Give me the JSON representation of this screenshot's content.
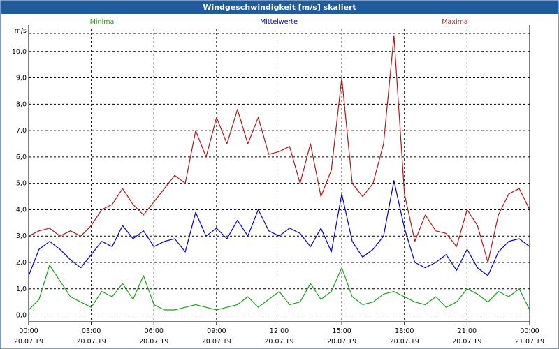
{
  "window": {
    "title": "Windgeschwindigkeit [m/s] skaliert"
  },
  "chart_data": {
    "type": "line",
    "title": "Windgeschwindigkeit [m/s] skaliert",
    "ylabel": "m/s",
    "ylim": [
      -0.25,
      11.0
    ],
    "yticks": [
      "0,0",
      "1,0",
      "2,0",
      "3,0",
      "4,0",
      "5,0",
      "6,0",
      "7,0",
      "8,0",
      "9,0",
      "10,0"
    ],
    "x_hours": [
      0,
      24
    ],
    "xticks": [
      {
        "time": "00:00",
        "date": "20.07.19"
      },
      {
        "time": "03:00",
        "date": "20.07.19"
      },
      {
        "time": "06:00",
        "date": "20.07.19"
      },
      {
        "time": "09:00",
        "date": "20.07.19"
      },
      {
        "time": "12:00",
        "date": "20.07.19"
      },
      {
        "time": "15:00",
        "date": "20.07.19"
      },
      {
        "time": "18:00",
        "date": "20.07.19"
      },
      {
        "time": "21:00",
        "date": "20.07.19"
      },
      {
        "time": "00:00",
        "date": "21.07.19"
      }
    ],
    "grid": true,
    "legend_position": "top",
    "series": [
      {
        "name": "Minima",
        "color": "#1aa01a",
        "x": [
          0,
          0.5,
          1,
          1.5,
          2,
          2.5,
          3,
          3.5,
          4,
          4.5,
          5,
          5.5,
          6,
          6.5,
          7,
          7.5,
          8,
          8.5,
          9,
          9.5,
          10,
          10.5,
          11,
          11.5,
          12,
          12.5,
          13,
          13.5,
          14,
          14.5,
          15,
          15.5,
          16,
          16.5,
          17,
          17.5,
          18,
          18.5,
          19,
          19.5,
          20,
          20.5,
          21,
          21.5,
          22,
          22.5,
          23,
          23.5,
          24
        ],
        "values": [
          0.2,
          0.6,
          1.9,
          1.3,
          0.7,
          0.5,
          0.3,
          0.9,
          0.7,
          1.2,
          0.6,
          1.5,
          0.4,
          0.2,
          0.2,
          0.3,
          0.4,
          0.3,
          0.2,
          0.3,
          0.4,
          0.7,
          0.3,
          0.6,
          0.9,
          0.4,
          0.5,
          1.2,
          0.6,
          0.9,
          1.8,
          0.7,
          0.4,
          0.5,
          0.8,
          0.9,
          0.7,
          0.5,
          0.4,
          0.7,
          0.3,
          0.5,
          1.0,
          0.8,
          0.5,
          0.9,
          0.7,
          1.0,
          0.2
        ]
      },
      {
        "name": "Mittelwerte",
        "color": "#0000c8",
        "x": [
          0,
          0.5,
          1,
          1.5,
          2,
          2.5,
          3,
          3.5,
          4,
          4.5,
          5,
          5.5,
          6,
          6.5,
          7,
          7.5,
          8,
          8.5,
          9,
          9.5,
          10,
          10.5,
          11,
          11.5,
          12,
          12.5,
          13,
          13.5,
          14,
          14.5,
          15,
          15.5,
          16,
          16.5,
          17,
          17.5,
          18,
          18.5,
          19,
          19.5,
          20,
          20.5,
          21,
          21.5,
          22,
          22.5,
          23,
          23.5,
          24
        ],
        "values": [
          1.5,
          2.5,
          2.8,
          2.5,
          2.1,
          1.8,
          2.3,
          2.8,
          2.6,
          3.4,
          2.9,
          3.2,
          2.6,
          2.8,
          2.9,
          2.4,
          3.9,
          3.0,
          3.3,
          2.9,
          3.6,
          3.0,
          4.0,
          3.2,
          3.0,
          3.3,
          3.1,
          2.6,
          3.3,
          2.4,
          4.6,
          2.8,
          2.2,
          2.5,
          3.0,
          5.1,
          3.3,
          2.0,
          1.8,
          2.0,
          2.3,
          1.7,
          2.5,
          1.8,
          1.5,
          2.4,
          2.8,
          2.9,
          2.6
        ]
      },
      {
        "name": "Maxima",
        "color": "#b01818",
        "x": [
          0,
          0.5,
          1,
          1.5,
          2,
          2.5,
          3,
          3.5,
          4,
          4.5,
          5,
          5.5,
          6,
          6.5,
          7,
          7.5,
          8,
          8.5,
          9,
          9.5,
          10,
          10.5,
          11,
          11.5,
          12,
          12.5,
          13,
          13.5,
          14,
          14.5,
          15,
          15.5,
          16,
          16.5,
          17,
          17.5,
          18,
          18.5,
          19,
          19.5,
          20,
          20.5,
          21,
          21.5,
          22,
          22.5,
          23,
          23.5,
          24
        ],
        "values": [
          3.0,
          3.2,
          3.3,
          3.0,
          3.2,
          3.0,
          3.4,
          4.0,
          4.2,
          4.8,
          4.2,
          3.8,
          4.3,
          4.8,
          5.3,
          5.0,
          7.0,
          6.0,
          7.5,
          6.5,
          7.8,
          6.5,
          7.5,
          6.1,
          6.2,
          6.4,
          5.0,
          6.5,
          4.5,
          5.5,
          9.0,
          5.0,
          4.5,
          5.0,
          6.5,
          10.6,
          4.6,
          2.8,
          3.8,
          3.2,
          3.1,
          2.6,
          4.0,
          3.4,
          2.0,
          3.8,
          4.6,
          4.8,
          4.0
        ]
      }
    ]
  }
}
